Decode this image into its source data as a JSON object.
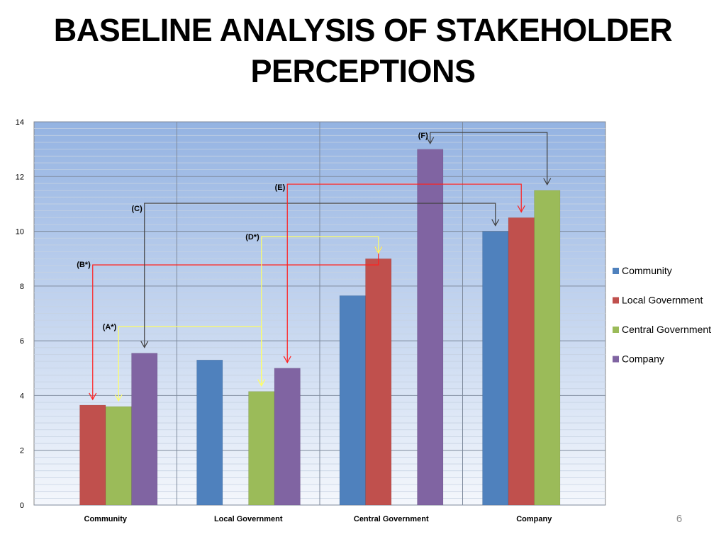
{
  "title": {
    "line1": "BASELINE ANALYSIS OF STAKEHOLDER",
    "line2": "PERCEPTIONS"
  },
  "page_number": "6",
  "chart_data": {
    "type": "bar",
    "title": "BASELINE ANALYSIS OF STAKEHOLDER PERCEPTIONS",
    "xlabel": "",
    "ylabel": "",
    "ylim": [
      0,
      14
    ],
    "yticks": [
      0,
      2,
      4,
      6,
      8,
      10,
      12,
      14
    ],
    "grid": true,
    "legend_position": "right",
    "categories": [
      "Community",
      "Local Government",
      "Central Government",
      "Company"
    ],
    "series": [
      {
        "name": "Community",
        "color": "#4f81bd",
        "values": [
          null,
          5.3,
          7.65,
          10.0
        ]
      },
      {
        "name": "Local Government",
        "color": "#c0504d",
        "values": [
          3.65,
          null,
          9.0,
          10.5
        ]
      },
      {
        "name": "Central Government",
        "color": "#9bbb59",
        "values": [
          3.6,
          4.15,
          null,
          11.5
        ]
      },
      {
        "name": "Company",
        "color": "#8064a2",
        "values": [
          5.55,
          5.0,
          13.0,
          null
        ]
      }
    ],
    "annotations": [
      {
        "label": "(A*)",
        "color": "#ffff66",
        "from": [
          "Community",
          "Central Government"
        ],
        "to": [
          "Local Government",
          "Central Government"
        ]
      },
      {
        "label": "(B*)",
        "color": "#ff2020",
        "from": [
          "Community",
          "Local Government"
        ],
        "to": [
          "Central Government",
          "Local Government"
        ]
      },
      {
        "label": "(C)",
        "color": "#404040",
        "from": [
          "Community",
          "Company"
        ],
        "to": [
          "Company",
          "Community"
        ]
      },
      {
        "label": "(D*)",
        "color": "#ffff66",
        "from": [
          "Local Government",
          "Central Government"
        ],
        "to": [
          "Central Government",
          "Local Government"
        ]
      },
      {
        "label": "(E)",
        "color": "#ff2020",
        "from": [
          "Local Government",
          "Company"
        ],
        "to": [
          "Company",
          "Local Government"
        ]
      },
      {
        "label": "(F)",
        "color": "#404040",
        "from": [
          "Central Government",
          "Company"
        ],
        "to": [
          "Company",
          "Central Government"
        ]
      }
    ]
  }
}
